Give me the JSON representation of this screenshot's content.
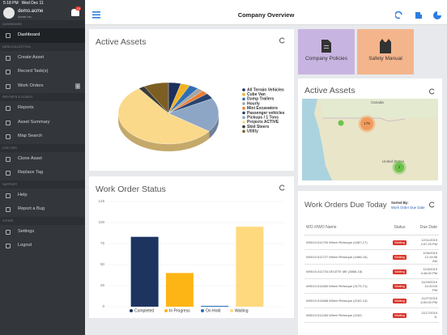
{
  "status_bar": {
    "time": "5:18 PM",
    "date": "Wed Dec 11"
  },
  "sidebar": {
    "user": "demo.acme",
    "org": "Acme Inc.",
    "notifications": 14,
    "sections": [
      {
        "title": "DASHBOARD",
        "items": [
          {
            "label": "Dashboard"
          }
        ]
      },
      {
        "title": "DATA COLLECTION",
        "items": [
          {
            "label": "Create Asset"
          },
          {
            "label": "Record Task(s)"
          },
          {
            "label": "Work Orders",
            "badge": 0
          }
        ]
      },
      {
        "title": "REPORTS & GUIDES",
        "items": [
          {
            "label": "Reports"
          },
          {
            "label": "Asset Summary"
          },
          {
            "label": "Map Search"
          }
        ]
      },
      {
        "title": "UTILITIES",
        "items": [
          {
            "label": "Clone Asset"
          },
          {
            "label": "Replace Tag"
          }
        ]
      },
      {
        "title": "SUPPORT",
        "items": [
          {
            "label": "Help"
          },
          {
            "label": "Report a Bug"
          }
        ]
      },
      {
        "title": "OTHER",
        "items": [
          {
            "label": "Settings"
          },
          {
            "label": "Logout"
          }
        ]
      }
    ]
  },
  "header": {
    "title": "Company Overview"
  },
  "active_assets": {
    "title": "Active Assets",
    "chart_data": {
      "type": "pie",
      "categories": [
        "All Terrain Vehicles",
        "Cube Van",
        "Dump Trailers",
        "Hourly",
        "Mini Excavators",
        "Passenger vehicles",
        "Pickups / 1 Tons",
        "Projects ACTIVE",
        "Skid Steers",
        "Utility"
      ],
      "values": [
        4,
        3,
        3,
        2,
        2,
        3,
        18,
        55,
        2,
        8
      ],
      "colors": [
        "#1d2f5c",
        "#f0b323",
        "#2f6fb5",
        "#a5a5a5",
        "#ed7d31",
        "#27436f",
        "#8ea6c6",
        "#fbd98a",
        "#3a3a3a",
        "#7d5e22"
      ]
    }
  },
  "tiles": [
    {
      "label": "Company Policies",
      "color": "#c8b4e0"
    },
    {
      "label": "Safety Manual",
      "color": "#f4b58c"
    }
  ],
  "map": {
    "title": "Active Assets",
    "labels": [
      "Canada",
      "United States"
    ],
    "clusters": [
      179,
      2
    ]
  },
  "work_order_status": {
    "title": "Work Order Status",
    "chart_data": {
      "type": "bar",
      "categories": [
        "Completed",
        "In Progress",
        "On Hold",
        "Waiting"
      ],
      "values": [
        83,
        40,
        1,
        95
      ],
      "colors": [
        "#1d3461",
        "#fdb515",
        "#2f6fb5",
        "#ffd97e"
      ],
      "ylim": [
        0,
        125
      ],
      "yticks": [
        0,
        25,
        50,
        75,
        100,
        125
      ],
      "grid": true
    }
  },
  "due_today": {
    "title": "Work Orders Due Today",
    "sort_label": "Sorted By:",
    "sort_value": "Work Order Due Date",
    "columns": [
      "WO #/WO Name",
      "Status",
      "Due Date"
    ],
    "rows": [
      [
        "W0019-011790 Wheel Retorque (4487-17)",
        "Waiting",
        "12/11/2019 4:57:29 PM"
      ],
      [
        "W0019-011727 Wheel Retorque (4486-16)",
        "Waiting",
        "12/6/2019 12:14:56 AM"
      ],
      [
        "W0019-011734 DELETE ME (3866-15)",
        "Waiting",
        "12/3/2019 3:45:00 PM"
      ],
      [
        "W0019-011660 Wheel Retorque (3179-71)",
        "Waiting",
        "11/29/2019 10:20:00 PM"
      ],
      [
        "W0019-011668 Wheel Retorque (2162-13)",
        "Waiting",
        "11/27/2019 6:00:00 PM"
      ],
      [
        "W0019-011284 Wheel Retorque (2162-",
        "Waiting",
        "11/17/2019 6:"
      ]
    ]
  }
}
